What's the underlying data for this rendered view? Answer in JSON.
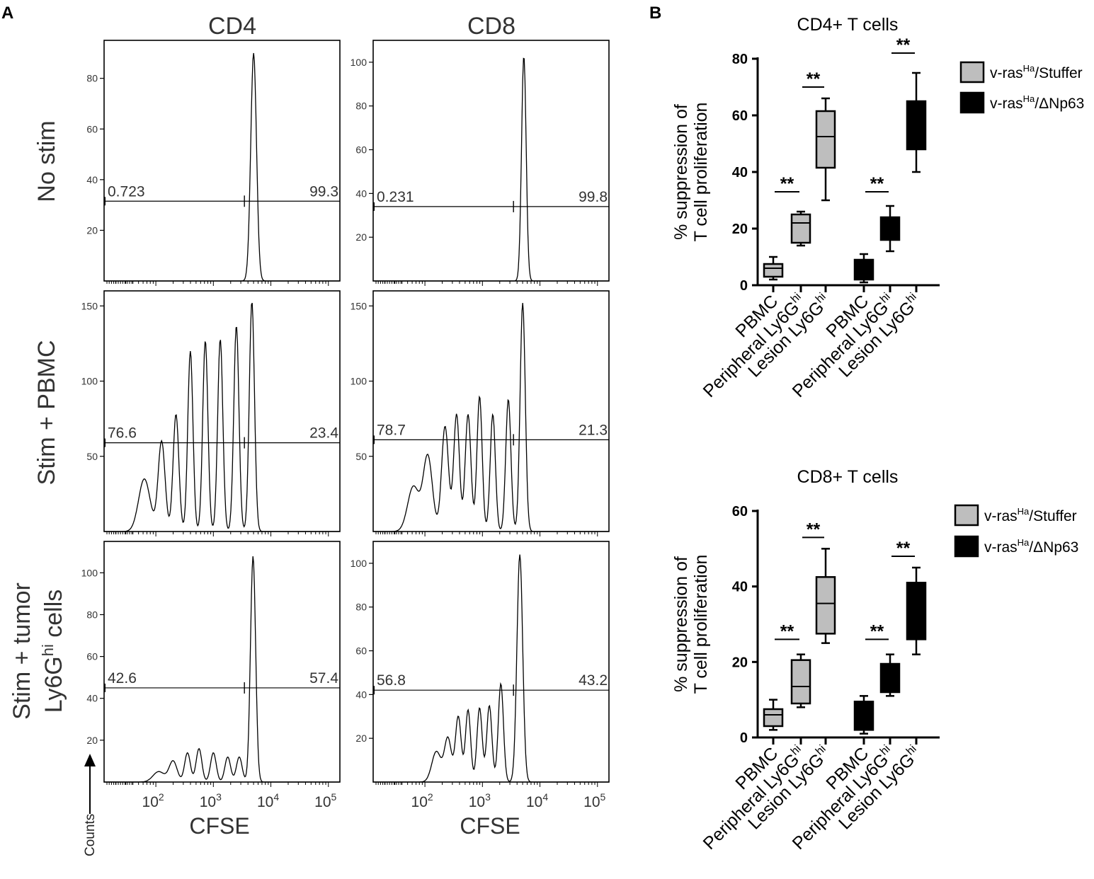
{
  "panels": {
    "a": "A",
    "b": "B"
  },
  "histograms": {
    "columns": [
      "CD4",
      "CD8"
    ],
    "rows": [
      {
        "label_lines": [
          "No stim"
        ]
      },
      {
        "label_lines": [
          "Stim + PBMC"
        ]
      },
      {
        "label_lines": [
          "Stim + tumor",
          "Ly6G",
          "hi",
          " cells"
        ]
      }
    ],
    "x_axis_label": "CFSE",
    "x_ticks": [
      {
        "base": "10",
        "exp": "2"
      },
      {
        "base": "10",
        "exp": "3"
      },
      {
        "base": "10",
        "exp": "4"
      },
      {
        "base": "10",
        "exp": "5"
      }
    ],
    "counts_label": "Counts"
  },
  "legend": {
    "stuffer": {
      "prefix": "v-ras",
      "sup": "Ha",
      "suffix": "/Stuffer",
      "color": "#bebebe"
    },
    "dnp63": {
      "prefix": "v-ras",
      "sup": "Ha",
      "suffix": "/ΔNp63",
      "color": "#000000"
    }
  },
  "box_axis": {
    "ylabel_lines": [
      "% suppression of",
      "T cell proliferation"
    ],
    "categories": [
      {
        "name": "PBMC",
        "sup": ""
      },
      {
        "name": "Peripheral Ly6G",
        "sup": "hi"
      },
      {
        "name": "Lesion Ly6G",
        "sup": "hi"
      },
      {
        "name": "PBMC",
        "sup": ""
      },
      {
        "name": "Peripheral Ly6G",
        "sup": "hi"
      },
      {
        "name": "Lesion Ly6G",
        "sup": "hi"
      }
    ],
    "sig_label": "**"
  },
  "chart_data": [
    {
      "type": "histogram",
      "id": "cd4-nostim",
      "title": "CD4",
      "row": "No stim",
      "yticks": [
        20,
        40,
        60,
        80
      ],
      "ymax": 95,
      "gate_left": "0.723",
      "gate_right": "99.3",
      "gate_y": 31.5,
      "peaks": [
        [
          3.7,
          90,
          0.05
        ]
      ],
      "xlabel": "",
      "ylabel": ""
    },
    {
      "type": "histogram",
      "id": "cd8-nostim",
      "title": "CD8",
      "row": "No stim",
      "yticks": [
        20,
        40,
        60,
        80,
        100
      ],
      "ymax": 110,
      "gate_left": "0.231",
      "gate_right": "99.8",
      "gate_y": 34,
      "peaks": [
        [
          3.72,
          103,
          0.04
        ]
      ],
      "xlabel": "",
      "ylabel": ""
    },
    {
      "type": "histogram",
      "id": "cd4-pbmc",
      "title": "CD4",
      "row": "Stim + PBMC",
      "yticks": [
        50,
        100,
        150
      ],
      "ymax": 160,
      "gate_left": "76.6",
      "gate_right": "23.4",
      "gate_y": 59,
      "peaks": [
        [
          3.67,
          153,
          0.045
        ],
        [
          3.4,
          137,
          0.045
        ],
        [
          3.12,
          128,
          0.045
        ],
        [
          2.86,
          127,
          0.045
        ],
        [
          2.6,
          120,
          0.045
        ],
        [
          2.35,
          78,
          0.05
        ],
        [
          2.1,
          60,
          0.06
        ],
        [
          1.8,
          35,
          0.1
        ]
      ],
      "xlabel": "",
      "ylabel": ""
    },
    {
      "type": "histogram",
      "id": "cd8-pbmc",
      "title": "CD8",
      "row": "Stim + PBMC",
      "yticks": [
        50,
        100,
        150
      ],
      "ymax": 160,
      "gate_left": "78.7",
      "gate_right": "21.3",
      "gate_y": 61,
      "peaks": [
        [
          3.7,
          152,
          0.045
        ],
        [
          3.45,
          88,
          0.045
        ],
        [
          3.18,
          78,
          0.045
        ],
        [
          2.95,
          90,
          0.045
        ],
        [
          2.75,
          78,
          0.05
        ],
        [
          2.55,
          78,
          0.05
        ],
        [
          2.35,
          70,
          0.06
        ],
        [
          2.05,
          50,
          0.08
        ],
        [
          1.8,
          30,
          0.1
        ]
      ],
      "xlabel": "",
      "ylabel": ""
    },
    {
      "type": "histogram",
      "id": "cd4-tumor",
      "title": "CD4",
      "row": "Stim + tumor Ly6Ghi cells",
      "yticks": [
        20,
        40,
        60,
        80,
        100
      ],
      "ymax": 115,
      "gate_left": "42.6",
      "gate_right": "57.4",
      "gate_y": 45,
      "peaks": [
        [
          3.69,
          108,
          0.045
        ],
        [
          3.45,
          12,
          0.05
        ],
        [
          3.25,
          12,
          0.05
        ],
        [
          3.0,
          14,
          0.05
        ],
        [
          2.75,
          16,
          0.05
        ],
        [
          2.55,
          14,
          0.05
        ],
        [
          2.3,
          10,
          0.07
        ],
        [
          2.05,
          5,
          0.1
        ]
      ],
      "xlabel": "CFSE",
      "ylabel": ""
    },
    {
      "type": "histogram",
      "id": "cd8-tumor",
      "title": "CD8",
      "row": "Stim + tumor Ly6Ghi cells",
      "yticks": [
        20,
        40,
        60,
        80,
        100
      ],
      "ymax": 110,
      "gate_left": "56.8",
      "gate_right": "43.2",
      "gate_y": 42,
      "peaks": [
        [
          3.65,
          104,
          0.05
        ],
        [
          3.32,
          45,
          0.045
        ],
        [
          3.12,
          35,
          0.045
        ],
        [
          2.95,
          34,
          0.045
        ],
        [
          2.75,
          33,
          0.045
        ],
        [
          2.58,
          30,
          0.05
        ],
        [
          2.4,
          20,
          0.06
        ],
        [
          2.2,
          14,
          0.08
        ]
      ],
      "xlabel": "CFSE",
      "ylabel": ""
    },
    {
      "type": "box",
      "id": "cd4-box",
      "title": "CD4+ T cells",
      "ylabel": "% suppression of T cell proliferation",
      "ylim": [
        0,
        80
      ],
      "yticks": [
        0,
        20,
        40,
        60,
        80
      ],
      "boxes": [
        {
          "group": "stuffer",
          "category": "PBMC",
          "min": 2,
          "q1": 3,
          "median": 6,
          "q3": 7.5,
          "max": 10
        },
        {
          "group": "stuffer",
          "category": "Peripheral Ly6Ghi",
          "min": 14,
          "q1": 15,
          "median": 22,
          "q3": 25,
          "max": 26
        },
        {
          "group": "stuffer",
          "category": "Lesion Ly6Ghi",
          "min": 30,
          "q1": 41.5,
          "median": 52.5,
          "q3": 61.5,
          "max": 66
        },
        {
          "group": "dnp63",
          "category": "PBMC",
          "min": 1,
          "q1": 2,
          "median": 5,
          "q3": 9,
          "max": 11
        },
        {
          "group": "dnp63",
          "category": "Peripheral Ly6Ghi",
          "min": 12,
          "q1": 16,
          "median": 20,
          "q3": 24,
          "max": 28
        },
        {
          "group": "dnp63",
          "category": "Lesion Ly6Ghi",
          "min": 40,
          "q1": 48,
          "median": 56,
          "q3": 65,
          "max": 75
        }
      ],
      "significance": [
        {
          "from": 1,
          "to": 2,
          "at": 33,
          "label": "**"
        },
        {
          "from": 2,
          "to": 3,
          "at": 70,
          "label": "**"
        },
        {
          "from": 4,
          "to": 5,
          "at": 33,
          "label": "**"
        },
        {
          "from": 5,
          "to": 6,
          "at": 82,
          "label": "**"
        }
      ]
    },
    {
      "type": "box",
      "id": "cd8-box",
      "title": "CD8+ T cells",
      "ylabel": "% suppression of T cell proliferation",
      "ylim": [
        0,
        60
      ],
      "yticks": [
        0,
        20,
        40,
        60
      ],
      "boxes": [
        {
          "group": "stuffer",
          "category": "PBMC",
          "min": 2,
          "q1": 3,
          "median": 6,
          "q3": 7.5,
          "max": 10
        },
        {
          "group": "stuffer",
          "category": "Peripheral Ly6Ghi",
          "min": 8,
          "q1": 9,
          "median": 13.5,
          "q3": 20.5,
          "max": 22
        },
        {
          "group": "stuffer",
          "category": "Lesion Ly6Ghi",
          "min": 25,
          "q1": 27.5,
          "median": 35.5,
          "q3": 42.5,
          "max": 50
        },
        {
          "group": "dnp63",
          "category": "PBMC",
          "min": 1,
          "q1": 2,
          "median": 4.5,
          "q3": 9.5,
          "max": 11
        },
        {
          "group": "dnp63",
          "category": "Peripheral Ly6Ghi",
          "min": 11,
          "q1": 12,
          "median": 15.5,
          "q3": 19.5,
          "max": 22
        },
        {
          "group": "dnp63",
          "category": "Lesion Ly6Ghi",
          "min": 22,
          "q1": 26,
          "median": 32,
          "q3": 41,
          "max": 45
        }
      ],
      "significance": [
        {
          "from": 1,
          "to": 2,
          "at": 26,
          "label": "**"
        },
        {
          "from": 2,
          "to": 3,
          "at": 53,
          "label": "**"
        },
        {
          "from": 4,
          "to": 5,
          "at": 26,
          "label": "**"
        },
        {
          "from": 5,
          "to": 6,
          "at": 48,
          "label": "**"
        }
      ]
    }
  ]
}
